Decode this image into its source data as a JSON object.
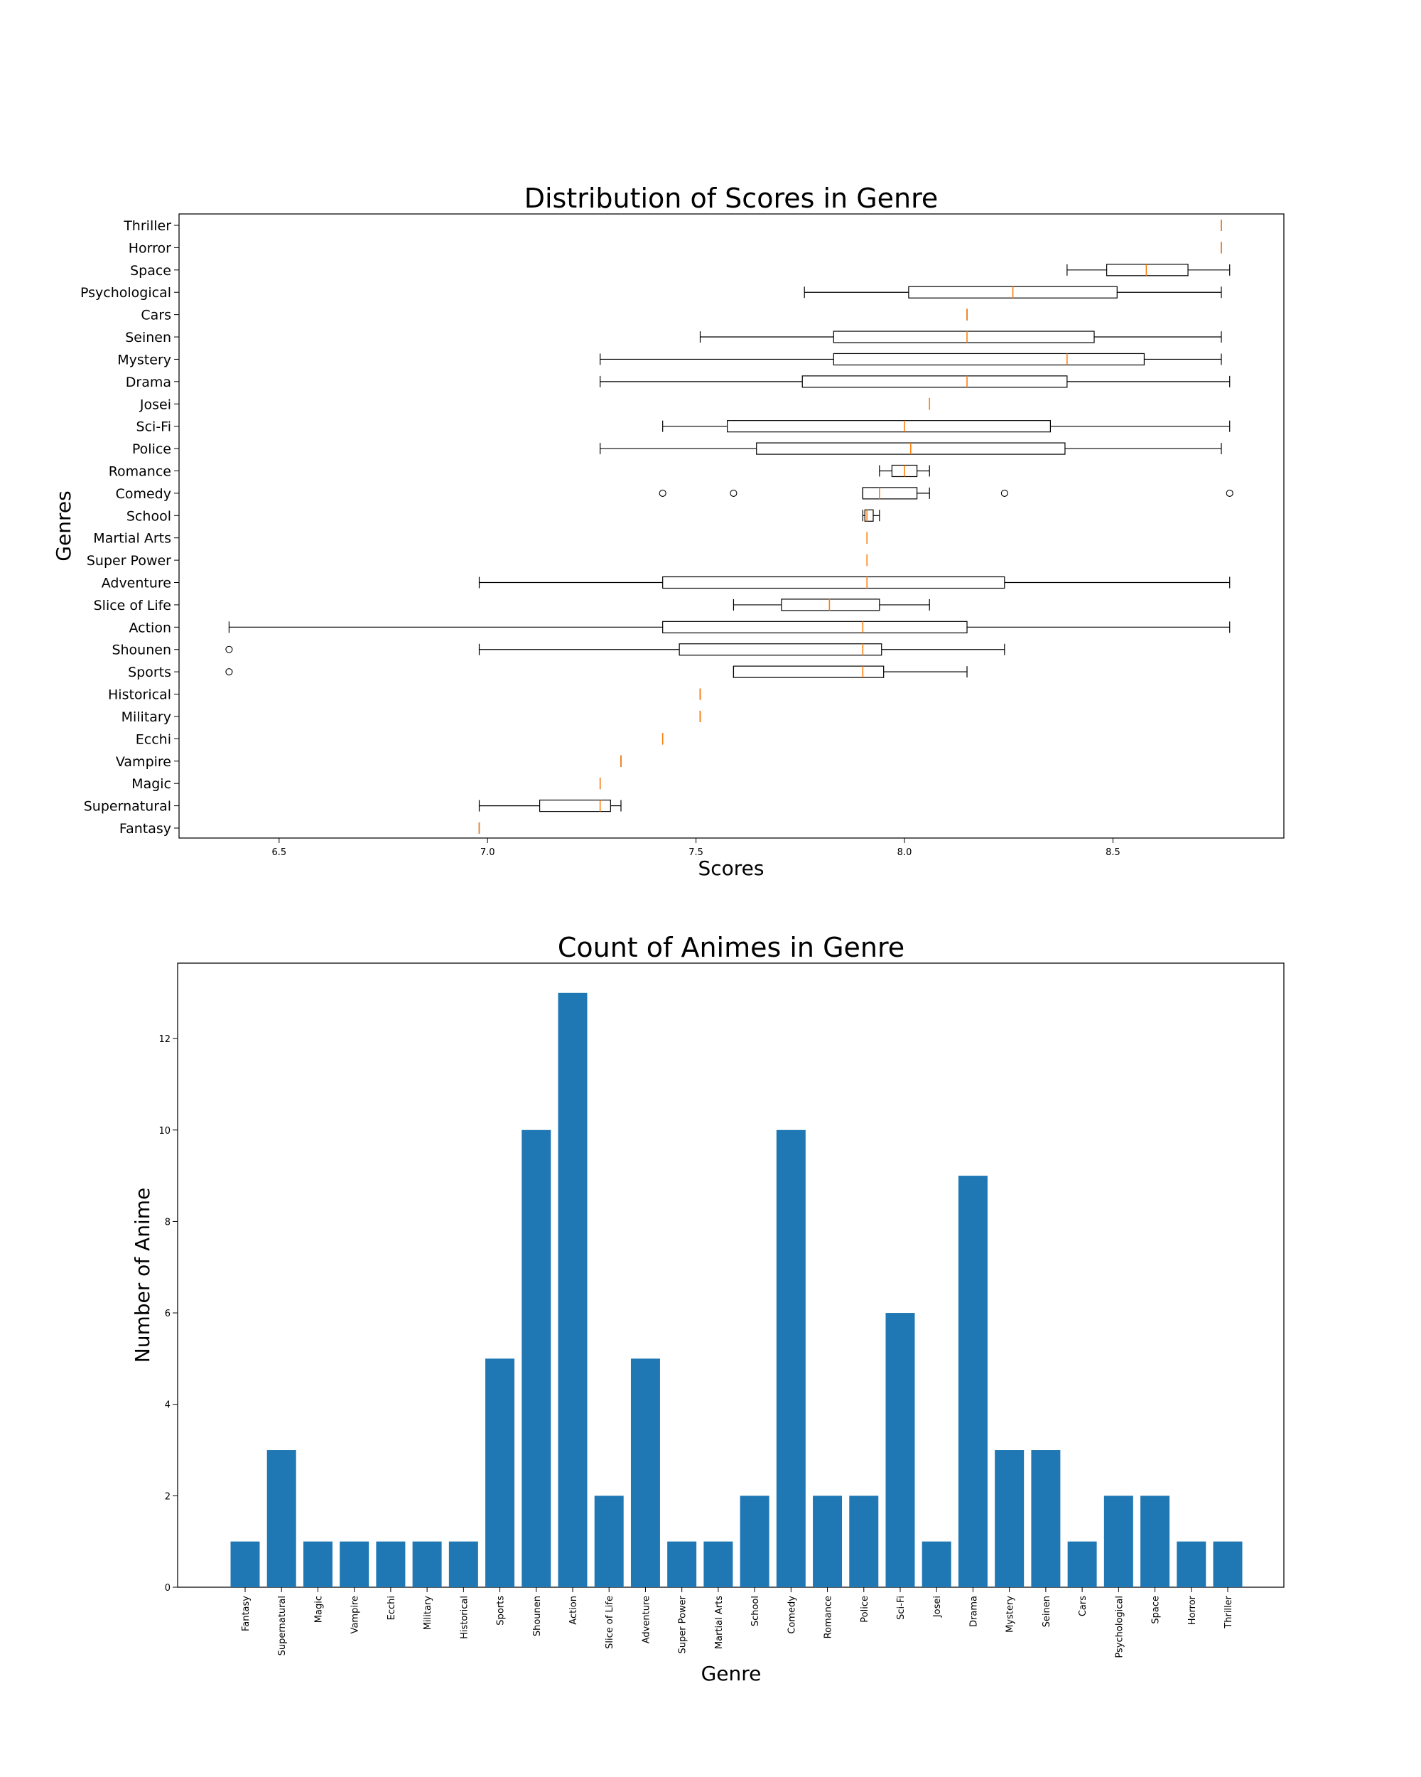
{
  "chart_data": [
    {
      "type": "boxplot",
      "orientation": "horizontal",
      "title": "Distribution of Scores in Genre",
      "xlabel": "Scores",
      "ylabel": "Genres",
      "xlim": [
        6.26,
        8.91
      ],
      "xticks": [
        "6.5",
        "7.0",
        "7.5",
        "8.0",
        "8.5"
      ],
      "grid": false,
      "box_color": "#000000",
      "median_color": "#ff7f0e",
      "categories": [
        "Fantasy",
        "Supernatural",
        "Magic",
        "Vampire",
        "Ecchi",
        "Military",
        "Historical",
        "Sports",
        "Shounen",
        "Action",
        "Slice of Life",
        "Adventure",
        "Super Power",
        "Martial Arts",
        "School",
        "Comedy",
        "Romance",
        "Police",
        "Sci-Fi",
        "Josei",
        "Drama",
        "Mystery",
        "Seinen",
        "Cars",
        "Psychological",
        "Space",
        "Horror",
        "Thriller"
      ],
      "boxes": [
        {
          "label": "Fantasy",
          "whislo": 6.98,
          "q1": 6.98,
          "med": 6.98,
          "q3": 6.98,
          "whishi": 6.98,
          "fliers": []
        },
        {
          "label": "Supernatural",
          "whislo": 6.98,
          "q1": 7.125,
          "med": 7.27,
          "q3": 7.295,
          "whishi": 7.32,
          "fliers": []
        },
        {
          "label": "Magic",
          "whislo": 7.27,
          "q1": 7.27,
          "med": 7.27,
          "q3": 7.27,
          "whishi": 7.27,
          "fliers": []
        },
        {
          "label": "Vampire",
          "whislo": 7.32,
          "q1": 7.32,
          "med": 7.32,
          "q3": 7.32,
          "whishi": 7.32,
          "fliers": []
        },
        {
          "label": "Ecchi",
          "whislo": 7.42,
          "q1": 7.42,
          "med": 7.42,
          "q3": 7.42,
          "whishi": 7.42,
          "fliers": []
        },
        {
          "label": "Military",
          "whislo": 7.51,
          "q1": 7.51,
          "med": 7.51,
          "q3": 7.51,
          "whishi": 7.51,
          "fliers": []
        },
        {
          "label": "Historical",
          "whislo": 7.51,
          "q1": 7.51,
          "med": 7.51,
          "q3": 7.51,
          "whishi": 7.51,
          "fliers": []
        },
        {
          "label": "Sports",
          "whislo": 7.59,
          "q1": 7.59,
          "med": 7.9,
          "q3": 7.95,
          "whishi": 8.15,
          "fliers": [
            6.38
          ]
        },
        {
          "label": "Shounen",
          "whislo": 6.98,
          "q1": 7.46,
          "med": 7.9,
          "q3": 7.945,
          "whishi": 8.24,
          "fliers": [
            6.38
          ]
        },
        {
          "label": "Action",
          "whislo": 6.38,
          "q1": 7.42,
          "med": 7.9,
          "q3": 8.15,
          "whishi": 8.78,
          "fliers": []
        },
        {
          "label": "Slice of Life",
          "whislo": 7.59,
          "q1": 7.705,
          "med": 7.82,
          "q3": 7.94,
          "whishi": 8.06,
          "fliers": []
        },
        {
          "label": "Adventure",
          "whislo": 6.98,
          "q1": 7.42,
          "med": 7.91,
          "q3": 8.24,
          "whishi": 8.78,
          "fliers": []
        },
        {
          "label": "Super Power",
          "whislo": 7.91,
          "q1": 7.91,
          "med": 7.91,
          "q3": 7.91,
          "whishi": 7.91,
          "fliers": []
        },
        {
          "label": "Martial Arts",
          "whislo": 7.91,
          "q1": 7.91,
          "med": 7.91,
          "q3": 7.91,
          "whishi": 7.91,
          "fliers": []
        },
        {
          "label": "School",
          "whislo": 7.9,
          "q1": 7.905,
          "med": 7.91,
          "q3": 7.925,
          "whishi": 7.94,
          "fliers": []
        },
        {
          "label": "Comedy",
          "whislo": 7.9,
          "q1": 7.9,
          "med": 7.94,
          "q3": 8.03,
          "whishi": 8.06,
          "fliers": [
            7.42,
            7.59,
            8.24,
            8.78
          ]
        },
        {
          "label": "Romance",
          "whislo": 7.94,
          "q1": 7.97,
          "med": 8.0,
          "q3": 8.03,
          "whishi": 8.06,
          "fliers": []
        },
        {
          "label": "Police",
          "whislo": 7.27,
          "q1": 7.645,
          "med": 8.015,
          "q3": 8.385,
          "whishi": 8.76,
          "fliers": []
        },
        {
          "label": "Sci-Fi",
          "whislo": 7.42,
          "q1": 7.575,
          "med": 8.0,
          "q3": 8.35,
          "whishi": 8.78,
          "fliers": []
        },
        {
          "label": "Josei",
          "whislo": 8.06,
          "q1": 8.06,
          "med": 8.06,
          "q3": 8.06,
          "whishi": 8.06,
          "fliers": []
        },
        {
          "label": "Drama",
          "whislo": 7.27,
          "q1": 7.755,
          "med": 8.15,
          "q3": 8.39,
          "whishi": 8.78,
          "fliers": []
        },
        {
          "label": "Mystery",
          "whislo": 7.27,
          "q1": 7.83,
          "med": 8.39,
          "q3": 8.575,
          "whishi": 8.76,
          "fliers": []
        },
        {
          "label": "Seinen",
          "whislo": 7.51,
          "q1": 7.83,
          "med": 8.15,
          "q3": 8.455,
          "whishi": 8.76,
          "fliers": []
        },
        {
          "label": "Cars",
          "whislo": 8.15,
          "q1": 8.15,
          "med": 8.15,
          "q3": 8.15,
          "whishi": 8.15,
          "fliers": []
        },
        {
          "label": "Psychological",
          "whislo": 7.76,
          "q1": 8.01,
          "med": 8.26,
          "q3": 8.51,
          "whishi": 8.76,
          "fliers": []
        },
        {
          "label": "Space",
          "whislo": 8.39,
          "q1": 8.485,
          "med": 8.58,
          "q3": 8.68,
          "whishi": 8.78,
          "fliers": []
        },
        {
          "label": "Horror",
          "whislo": 8.76,
          "q1": 8.76,
          "med": 8.76,
          "q3": 8.76,
          "whishi": 8.76,
          "fliers": []
        },
        {
          "label": "Thriller",
          "whislo": 8.76,
          "q1": 8.76,
          "med": 8.76,
          "q3": 8.76,
          "whishi": 8.76,
          "fliers": []
        }
      ]
    },
    {
      "type": "bar",
      "title": "Count of Animes in Genre",
      "xlabel": "Genre",
      "ylabel": "Number of Anime",
      "ylim": [
        0,
        13.65
      ],
      "yticks": [
        "0",
        "2",
        "4",
        "6",
        "8",
        "10",
        "12"
      ],
      "grid": false,
      "bar_color": "#1f77b4",
      "categories": [
        "Fantasy",
        "Supernatural",
        "Magic",
        "Vampire",
        "Ecchi",
        "Military",
        "Historical",
        "Sports",
        "Shounen",
        "Action",
        "Slice of Life",
        "Adventure",
        "Super Power",
        "Martial Arts",
        "School",
        "Comedy",
        "Romance",
        "Police",
        "Sci-Fi",
        "Josei",
        "Drama",
        "Mystery",
        "Seinen",
        "Cars",
        "Psychological",
        "Space",
        "Horror",
        "Thriller"
      ],
      "values": [
        1,
        3,
        1,
        1,
        1,
        1,
        1,
        5,
        10,
        13,
        2,
        5,
        1,
        1,
        2,
        10,
        2,
        2,
        6,
        1,
        9,
        3,
        3,
        1,
        2,
        2,
        1,
        1
      ]
    }
  ]
}
